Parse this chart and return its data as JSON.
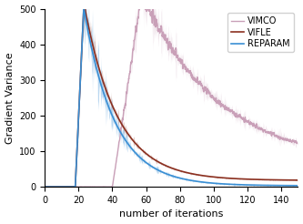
{
  "title": "",
  "xlabel": "number of iterations",
  "ylabel": "Gradient Variance",
  "xlim": [
    0,
    150
  ],
  "ylim": [
    0,
    500
  ],
  "xticks": [
    0,
    20,
    40,
    60,
    80,
    100,
    120,
    140
  ],
  "yticks": [
    0,
    100,
    200,
    300,
    400,
    500
  ],
  "legend": [
    "VIMCO",
    "VIFLE",
    "REPARAM"
  ],
  "colors": {
    "VIMCO": "#c9a0b8",
    "VIFLE": "#8B3020",
    "REPARAM": "#3a8fd4"
  },
  "figsize": [
    3.33,
    2.46
  ],
  "dpi": 100,
  "seed": 42
}
